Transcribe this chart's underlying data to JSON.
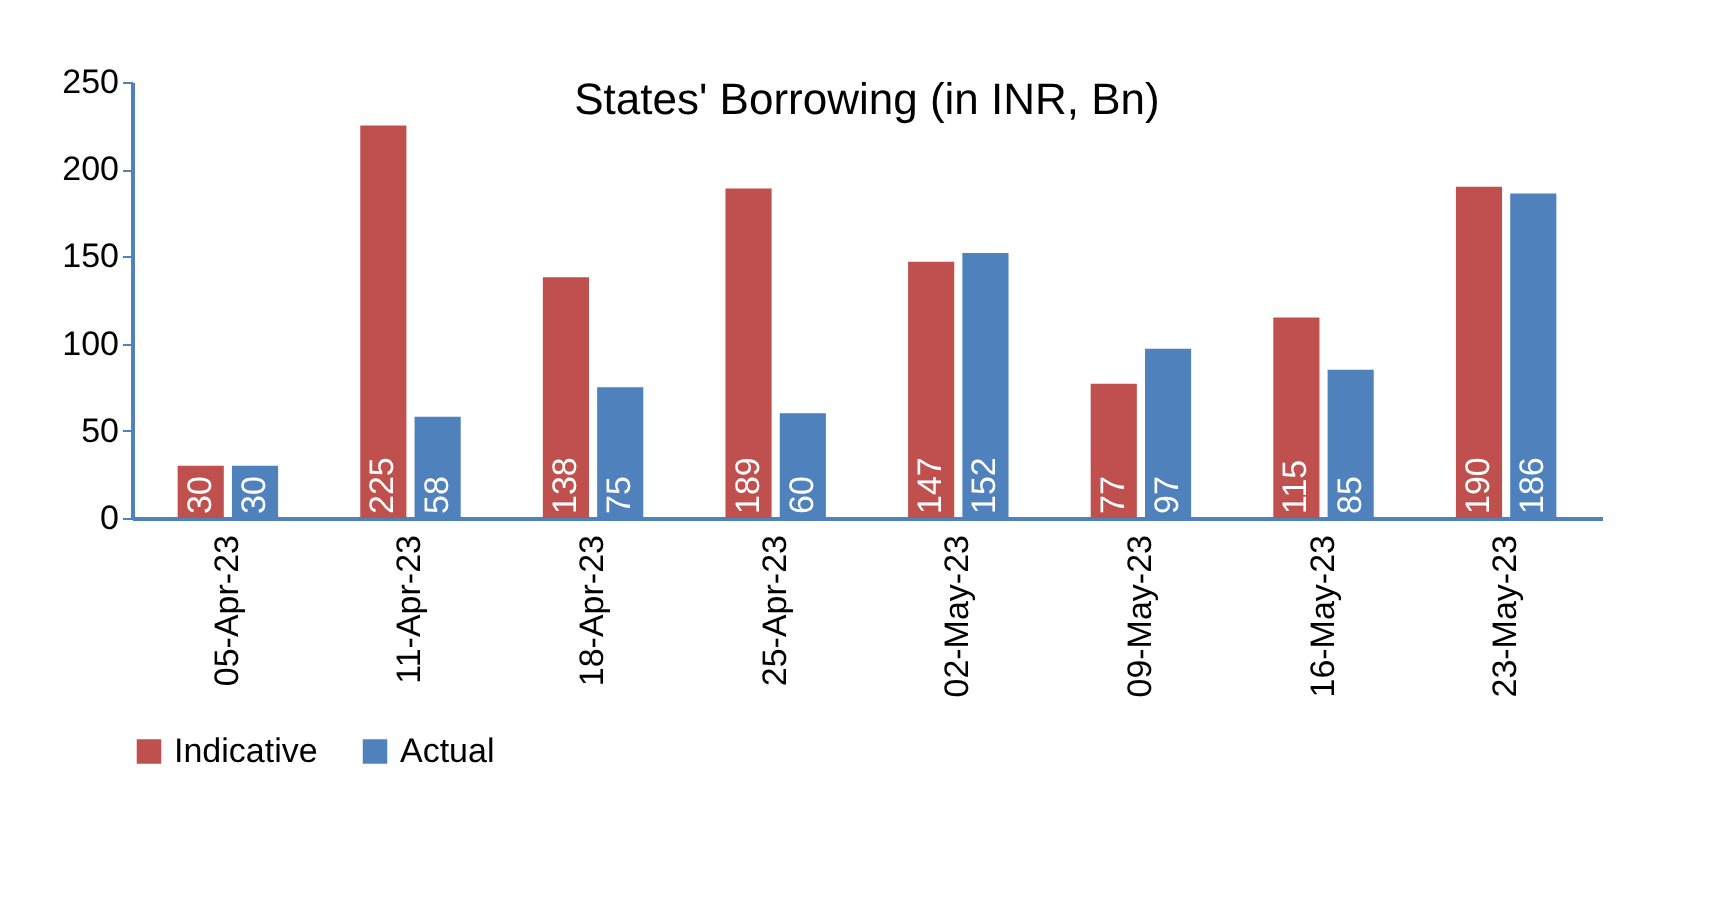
{
  "chart_data": {
    "type": "bar",
    "title": "States' Borrowing (in INR, Bn)",
    "categories": [
      "05-Apr-23",
      "11-Apr-23",
      "18-Apr-23",
      "25-Apr-23",
      "02-May-23",
      "09-May-23",
      "16-May-23",
      "23-May-23"
    ],
    "series": [
      {
        "name": "Indicative",
        "color": "#c0504d",
        "values": [
          30,
          225,
          138,
          189,
          147,
          77,
          115,
          190
        ]
      },
      {
        "name": "Actual",
        "color": "#4f81bd",
        "values": [
          30,
          58,
          75,
          60,
          152,
          97,
          85,
          186
        ]
      }
    ],
    "ylim": [
      0,
      250
    ],
    "yticks": [
      0,
      50,
      100,
      150,
      200,
      250
    ],
    "grid": false,
    "legend": "bottom",
    "data_labels": true
  }
}
